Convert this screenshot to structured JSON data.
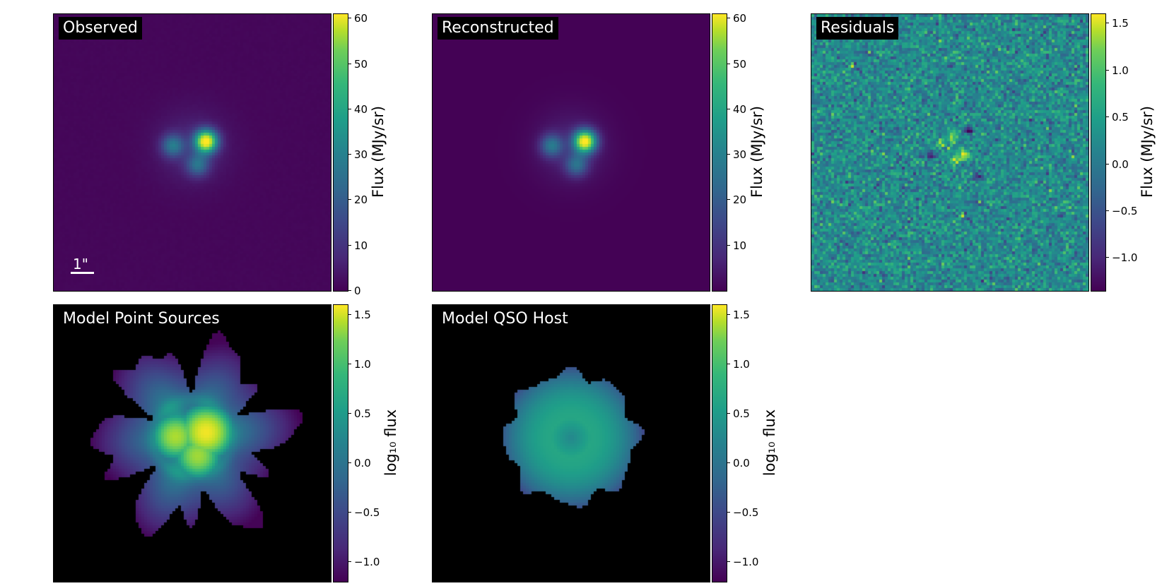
{
  "chart_data": [
    {
      "type": "heatmap",
      "id": "observed",
      "title": "Observed",
      "colormap": "viridis",
      "colorbar": {
        "label": "Flux (MJy/sr)",
        "range": [
          0,
          61
        ],
        "ticks": [
          0,
          10,
          20,
          30,
          40,
          50,
          60
        ],
        "tick_labels": [
          "0",
          "10",
          "20",
          "30",
          "40",
          "50",
          "60"
        ]
      },
      "scale_bar": "1\"",
      "background": 1.0,
      "sources": [
        {
          "x": 0.55,
          "y": 0.46,
          "sigma": 0.028,
          "amp": 60
        },
        {
          "x": 0.43,
          "y": 0.475,
          "sigma": 0.028,
          "amp": 21
        },
        {
          "x": 0.52,
          "y": 0.545,
          "sigma": 0.028,
          "amp": 19
        },
        {
          "x": 0.5,
          "y": 0.48,
          "sigma": 0.09,
          "amp": 6
        }
      ]
    },
    {
      "type": "heatmap",
      "id": "reconstructed",
      "title": "Reconstructed",
      "colormap": "viridis",
      "colorbar": {
        "label": "Flux (MJy/sr)",
        "range": [
          0,
          61
        ],
        "ticks": [
          10,
          20,
          30,
          40,
          50,
          60
        ],
        "tick_labels": [
          "10",
          "20",
          "30",
          "40",
          "50",
          "60"
        ]
      },
      "background": 0.2,
      "sources": [
        {
          "x": 0.55,
          "y": 0.46,
          "sigma": 0.028,
          "amp": 60
        },
        {
          "x": 0.43,
          "y": 0.475,
          "sigma": 0.028,
          "amp": 21
        },
        {
          "x": 0.52,
          "y": 0.545,
          "sigma": 0.028,
          "amp": 19
        },
        {
          "x": 0.5,
          "y": 0.48,
          "sigma": 0.09,
          "amp": 6
        }
      ]
    },
    {
      "type": "heatmap",
      "id": "residuals",
      "title": "Residuals",
      "colormap": "viridis",
      "colorbar": {
        "label": "Flux (MJy/sr)",
        "range": [
          -1.35,
          1.6
        ],
        "ticks": [
          -1.0,
          -0.5,
          0.0,
          0.5,
          1.0,
          1.5
        ],
        "tick_labels": [
          "−1.0",
          "−0.5",
          "0.0",
          "0.5",
          "1.0",
          "1.5"
        ]
      },
      "noise_sigma": 0.3,
      "features": [
        {
          "x": 0.43,
          "y": 0.51,
          "value": -1.3
        },
        {
          "x": 0.55,
          "y": 0.51,
          "value": 1.5
        },
        {
          "x": 0.57,
          "y": 0.42,
          "value": -1.0
        },
        {
          "x": 0.51,
          "y": 0.44,
          "value": 1.1
        },
        {
          "x": 0.6,
          "y": 0.59,
          "value": -0.9
        },
        {
          "x": 0.47,
          "y": 0.47,
          "value": 1.0
        },
        {
          "x": 0.52,
          "y": 0.53,
          "value": 0.9
        }
      ]
    },
    {
      "type": "heatmap",
      "id": "model-point-sources",
      "title": "Model Point Sources",
      "colormap": "viridis",
      "masked_color": "#000000",
      "colorbar": {
        "label": "log₁₀ flux",
        "range": [
          -1.2,
          1.6
        ],
        "ticks": [
          -1.0,
          -0.5,
          0.0,
          0.5,
          1.0,
          1.5
        ],
        "tick_labels": [
          "−1.0",
          "−0.5",
          "0.0",
          "0.5",
          "1.0",
          "1.5"
        ]
      },
      "sources": [
        {
          "x": 0.55,
          "y": 0.46,
          "sigma": 0.035,
          "log_peak": 1.55
        },
        {
          "x": 0.44,
          "y": 0.475,
          "sigma": 0.032,
          "log_peak": 1.25
        },
        {
          "x": 0.52,
          "y": 0.545,
          "sigma": 0.032,
          "log_peak": 1.2
        }
      ]
    },
    {
      "type": "heatmap",
      "id": "model-qso-host",
      "title": "Model QSO Host",
      "colormap": "viridis",
      "masked_color": "#000000",
      "colorbar": {
        "label": "log₁₀ flux",
        "range": [
          -1.2,
          1.6
        ],
        "ticks": [
          -1.0,
          -0.5,
          0.0,
          0.5,
          1.0,
          1.5
        ],
        "tick_labels": [
          "−1.0",
          "−0.5",
          "0.0",
          "0.5",
          "1.0",
          "1.5"
        ]
      },
      "center": {
        "x": 0.5,
        "y": 0.48
      },
      "ring_log_peak": 0.45,
      "center_log": 0.1
    }
  ]
}
